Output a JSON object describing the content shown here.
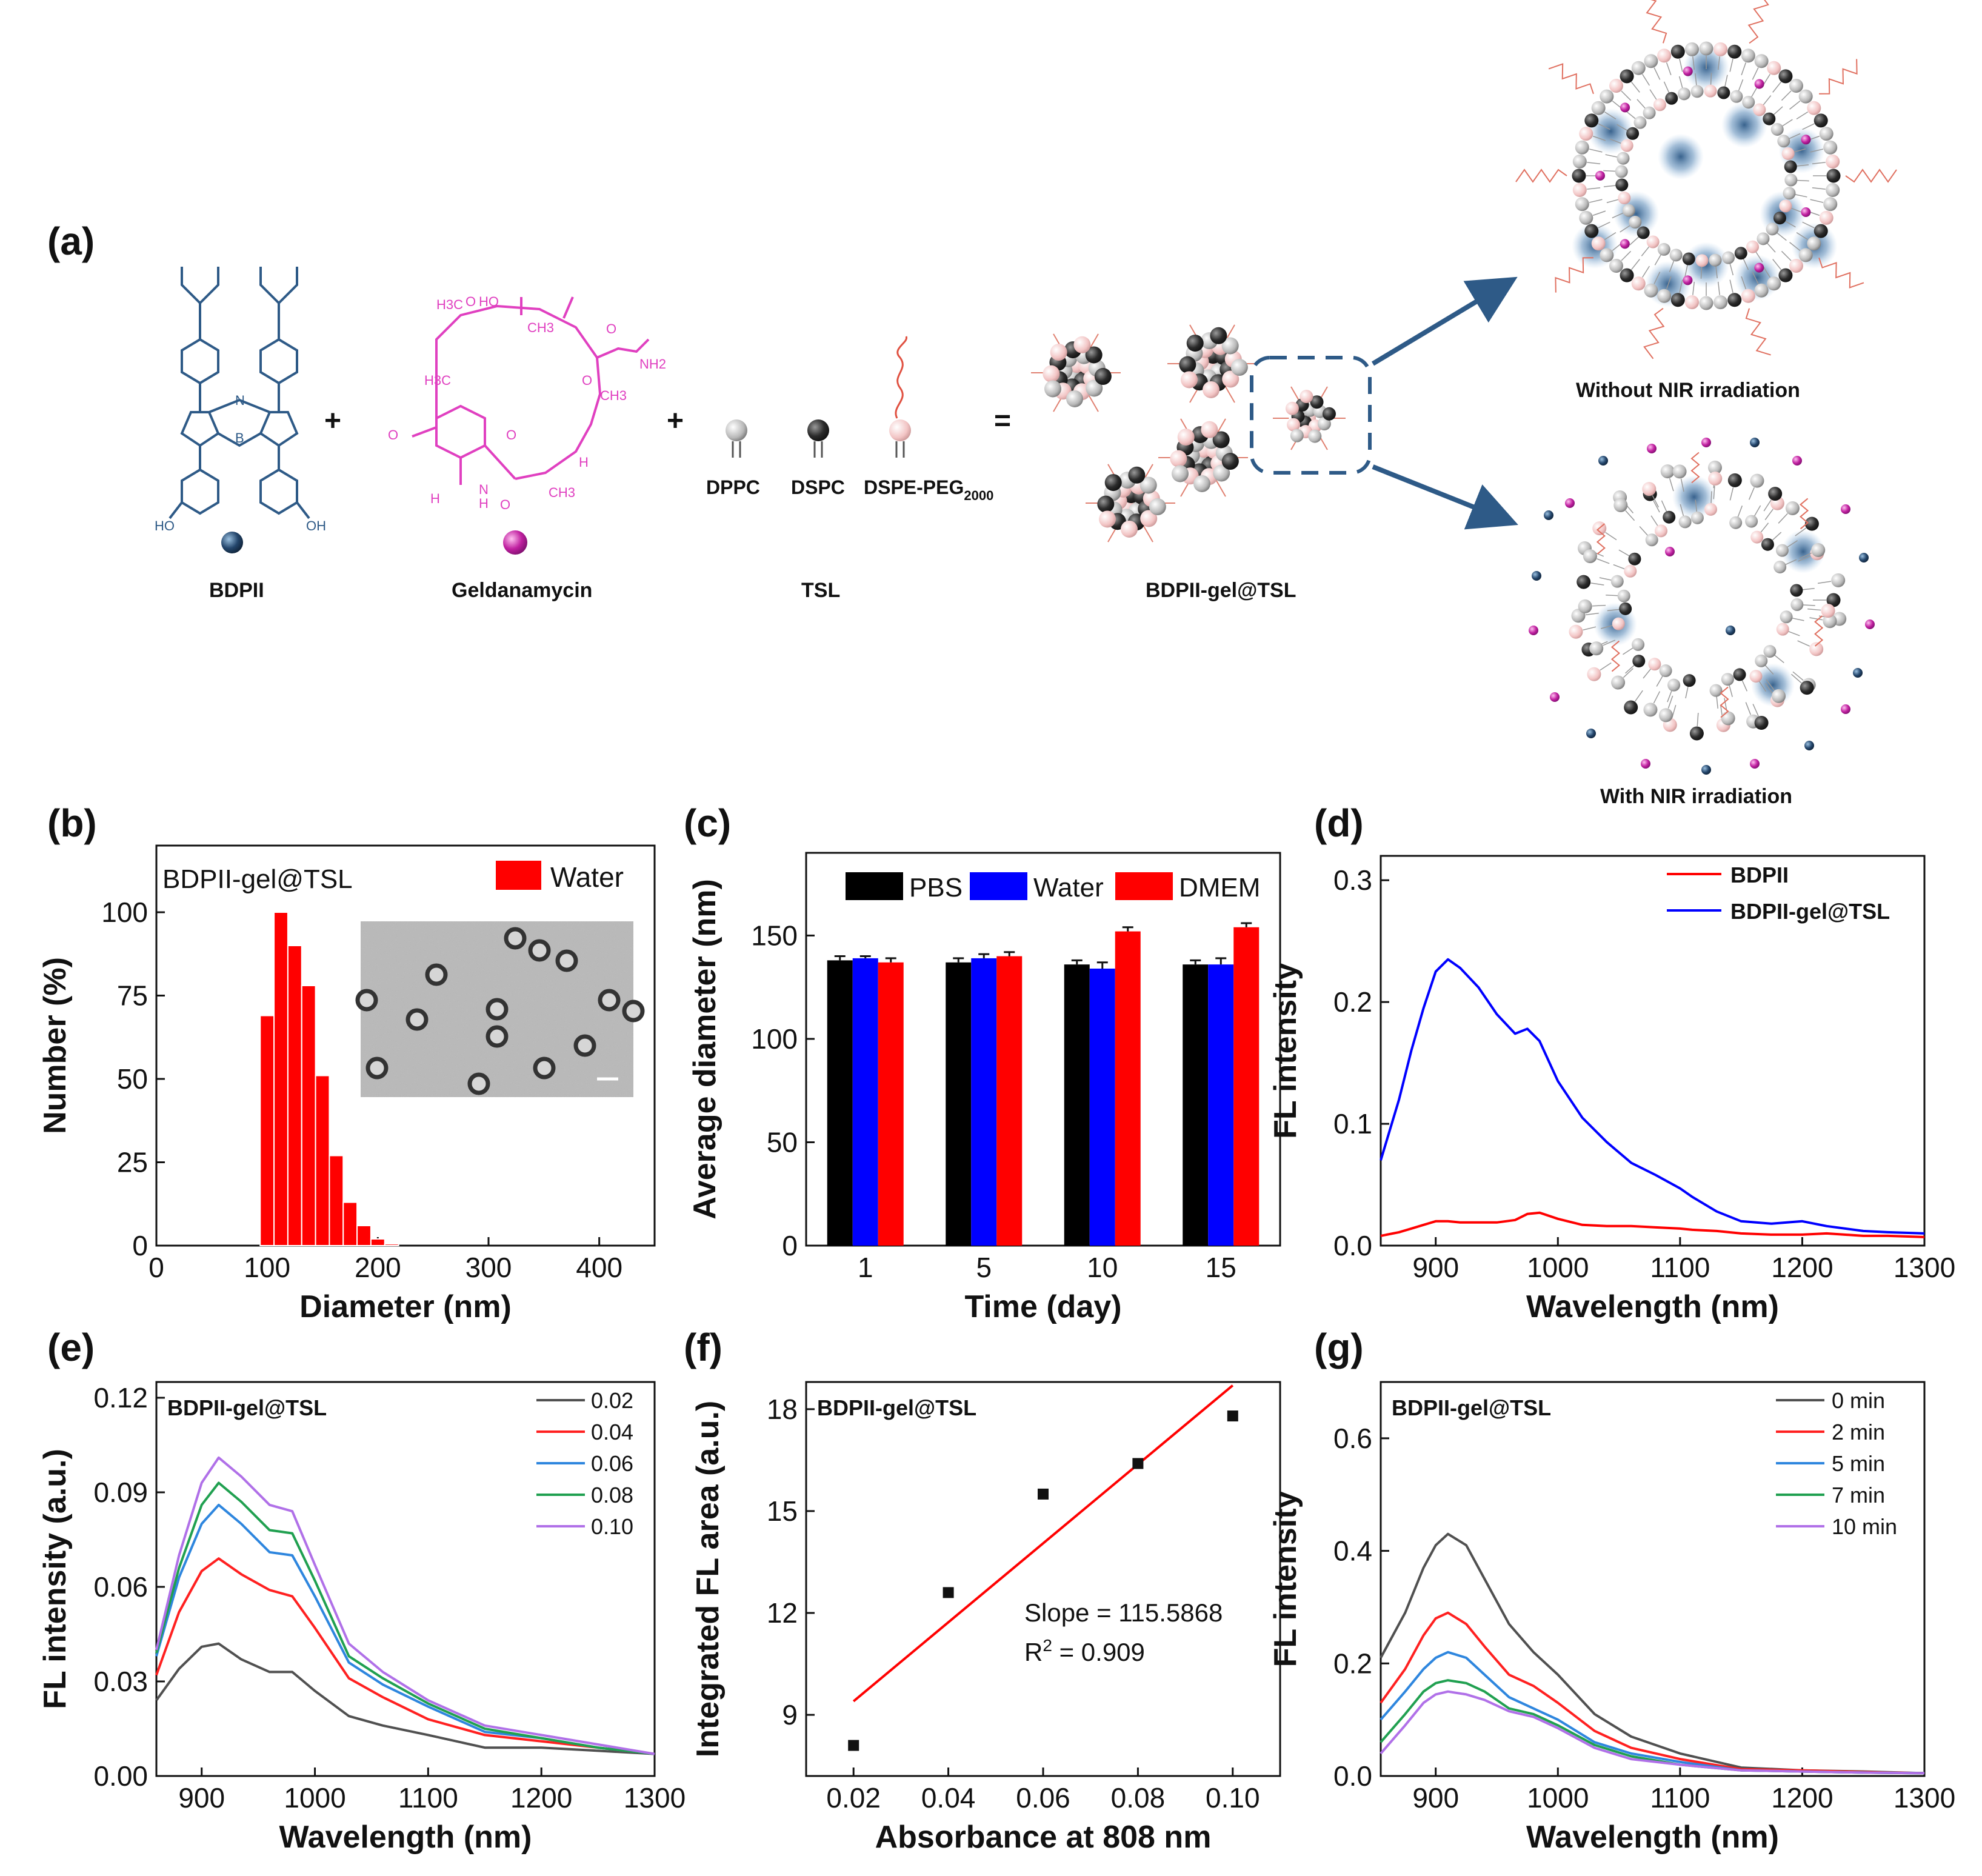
{
  "panel_labels": [
    "(a)",
    "(b)",
    "(c)",
    "(d)",
    "(e)",
    "(f)",
    "(g)"
  ],
  "schematic": {
    "components": [
      {
        "name": "BDPII"
      },
      {
        "name": "Geldanamycin"
      },
      {
        "name": "TSL",
        "lipids": [
          "DPPC",
          "DSPC"
        ],
        "peg_base": "DSPE-PEG",
        "peg_sub": "2000"
      },
      {
        "name": "BDPII-gel@TSL"
      }
    ],
    "operators": [
      "+",
      "+",
      "="
    ],
    "outcomes": [
      "Without NIR irradiation",
      "With NIR irradiation"
    ],
    "chem_labels": [
      "H3C",
      "O",
      "HO",
      "CH3",
      "O",
      "NH2",
      "H3C",
      "O",
      "CH3",
      "O",
      "O",
      "N",
      "H",
      "O",
      "CH3",
      "H",
      "H",
      "HO",
      "OH",
      "N",
      "B"
    ],
    "colors": {
      "bdpii": "#2e5a87",
      "gel": "#e040c0",
      "dark_sphere": "#2b2b2b",
      "light_sphere": "#c8c8c8",
      "pink_sphere": "#f0c0c0",
      "arrow": "#2e5a87"
    }
  },
  "chart_data": [
    {
      "id": "b",
      "type": "bar",
      "title": "BDPII-gel@TSL",
      "xlabel": "Diameter (nm)",
      "ylabel": "Number (%)",
      "xlim": [
        0,
        450
      ],
      "ylim": [
        0,
        120
      ],
      "xticks": [
        0,
        100,
        200,
        300,
        400
      ],
      "yticks": [
        0,
        25,
        50,
        75,
        100
      ],
      "legend": [
        "Water"
      ],
      "color": "#ff0000",
      "bin_width": 12.5,
      "bin_centers": [
        100,
        112.5,
        125,
        137.5,
        150,
        162.5,
        175,
        187.5,
        200,
        212.5
      ],
      "values": [
        69,
        100,
        90,
        78,
        51,
        27,
        13,
        6,
        2,
        0.5
      ],
      "inset": "TEM image"
    },
    {
      "id": "c",
      "type": "bar",
      "xlabel": "Time (day)",
      "ylabel": "Average diameter (nm)",
      "ylim": [
        0,
        190
      ],
      "yticks": [
        0,
        50,
        100,
        150
      ],
      "categories": [
        "1",
        "5",
        "10",
        "15"
      ],
      "series": [
        {
          "name": "PBS",
          "color": "#000000",
          "values": [
            138,
            137,
            136,
            136
          ],
          "errors": [
            2,
            2,
            2,
            2
          ]
        },
        {
          "name": "Water",
          "color": "#0000ff",
          "values": [
            139,
            139,
            134,
            136
          ],
          "errors": [
            1,
            2,
            3,
            3
          ]
        },
        {
          "name": "DMEM",
          "color": "#ff0000",
          "values": [
            137,
            140,
            152,
            154
          ],
          "errors": [
            2,
            2,
            2,
            2
          ]
        }
      ]
    },
    {
      "id": "d",
      "type": "line",
      "xlabel": "Wavelength (nm)",
      "ylabel": "FL intensity",
      "xlim": [
        855,
        1300
      ],
      "ylim": [
        0,
        0.32
      ],
      "xticks": [
        900,
        1000,
        1100,
        1200,
        1300
      ],
      "yticks": [
        0.0,
        0.1,
        0.2,
        0.3
      ],
      "ytick_labels": [
        "0.0",
        "0.1",
        "0.2",
        "0.3"
      ],
      "x": [
        855,
        870,
        880,
        890,
        900,
        910,
        920,
        935,
        950,
        965,
        975,
        985,
        1000,
        1020,
        1040,
        1060,
        1080,
        1100,
        1110,
        1130,
        1150,
        1175,
        1200,
        1220,
        1250,
        1270,
        1300
      ],
      "series": [
        {
          "name": "BDPII",
          "color": "#ff0000",
          "values": [
            0.008,
            0.011,
            0.014,
            0.017,
            0.02,
            0.02,
            0.019,
            0.019,
            0.019,
            0.021,
            0.026,
            0.027,
            0.022,
            0.017,
            0.016,
            0.016,
            0.015,
            0.014,
            0.013,
            0.012,
            0.01,
            0.009,
            0.009,
            0.01,
            0.008,
            0.008,
            0.007
          ]
        },
        {
          "name": "BDPII-gel@TSL",
          "color": "#0000ff",
          "values": [
            0.07,
            0.12,
            0.16,
            0.195,
            0.225,
            0.235,
            0.228,
            0.212,
            0.19,
            0.174,
            0.178,
            0.168,
            0.135,
            0.105,
            0.085,
            0.068,
            0.058,
            0.047,
            0.04,
            0.028,
            0.02,
            0.018,
            0.02,
            0.016,
            0.012,
            0.011,
            0.01
          ]
        }
      ]
    },
    {
      "id": "e",
      "type": "line",
      "title": "BDPII-gel@TSL",
      "xlabel": "Wavelength (nm)",
      "ylabel": "FL intensity (a.u.)",
      "xlim": [
        860,
        1300
      ],
      "ylim": [
        0,
        0.125
      ],
      "xticks": [
        900,
        1000,
        1100,
        1200,
        1300
      ],
      "yticks": [
        0.0,
        0.03,
        0.06,
        0.09,
        0.12
      ],
      "ytick_labels": [
        "0.00",
        "0.03",
        "0.06",
        "0.09",
        "0.12"
      ],
      "x": [
        860,
        880,
        900,
        915,
        935,
        960,
        980,
        1000,
        1030,
        1060,
        1100,
        1150,
        1200,
        1250,
        1300
      ],
      "series": [
        {
          "name": "0.02",
          "color": "#505050",
          "values": [
            0.024,
            0.034,
            0.041,
            0.042,
            0.037,
            0.033,
            0.033,
            0.027,
            0.019,
            0.016,
            0.013,
            0.009,
            0.009,
            0.008,
            0.007
          ]
        },
        {
          "name": "0.04",
          "color": "#ff2020",
          "values": [
            0.032,
            0.052,
            0.065,
            0.069,
            0.064,
            0.059,
            0.057,
            0.047,
            0.031,
            0.025,
            0.018,
            0.013,
            0.011,
            0.009,
            0.007
          ]
        },
        {
          "name": "0.06",
          "color": "#2e86de",
          "values": [
            0.038,
            0.063,
            0.08,
            0.086,
            0.08,
            0.071,
            0.07,
            0.057,
            0.036,
            0.029,
            0.022,
            0.014,
            0.012,
            0.009,
            0.007
          ]
        },
        {
          "name": "0.08",
          "color": "#20a050",
          "values": [
            0.039,
            0.066,
            0.086,
            0.093,
            0.087,
            0.078,
            0.077,
            0.062,
            0.038,
            0.031,
            0.023,
            0.015,
            0.012,
            0.009,
            0.007
          ]
        },
        {
          "name": "0.10",
          "color": "#b070e8",
          "values": [
            0.04,
            0.07,
            0.093,
            0.101,
            0.095,
            0.086,
            0.084,
            0.067,
            0.042,
            0.033,
            0.024,
            0.016,
            0.013,
            0.01,
            0.007
          ]
        }
      ]
    },
    {
      "id": "f",
      "type": "scatter",
      "title": "BDPII-gel@TSL",
      "xlabel": "Absorbance at 808 nm",
      "ylabel": "Integrated FL area (a.u.)",
      "xlim": [
        0.01,
        0.11
      ],
      "ylim": [
        7.2,
        18.8
      ],
      "xticks": [
        0.02,
        0.04,
        0.06,
        0.08,
        0.1
      ],
      "xtick_labels": [
        "0.02",
        "0.04",
        "0.06",
        "0.08",
        "0.10"
      ],
      "yticks": [
        9,
        12,
        15,
        18
      ],
      "points": [
        {
          "x": 0.02,
          "y": 8.1
        },
        {
          "x": 0.04,
          "y": 12.6
        },
        {
          "x": 0.06,
          "y": 15.5
        },
        {
          "x": 0.08,
          "y": 16.4
        },
        {
          "x": 0.1,
          "y": 17.8
        }
      ],
      "fit": {
        "x0": 0.02,
        "y0": 9.4,
        "x1": 0.1,
        "y1": 18.7,
        "color": "#ff0000"
      },
      "annotation": {
        "slope_label": "Slope = 115.5868",
        "r2_base": "R",
        "r2_sup": "2",
        "r2_rest": " = 0.909"
      }
    },
    {
      "id": "g",
      "type": "line",
      "title": "BDPII-gel@TSL",
      "xlabel": "Wavelength (nm)",
      "ylabel": "FL intensity",
      "xlim": [
        855,
        1300
      ],
      "ylim": [
        0,
        0.7
      ],
      "xticks": [
        900,
        1000,
        1100,
        1200,
        1300
      ],
      "yticks": [
        0.0,
        0.2,
        0.4,
        0.6
      ],
      "ytick_labels": [
        "0.0",
        "0.2",
        "0.4",
        "0.6"
      ],
      "x": [
        855,
        875,
        890,
        900,
        910,
        925,
        940,
        960,
        980,
        1000,
        1030,
        1060,
        1100,
        1150,
        1200,
        1250,
        1300
      ],
      "series": [
        {
          "name": "0 min",
          "color": "#505050",
          "values": [
            0.21,
            0.29,
            0.37,
            0.41,
            0.43,
            0.41,
            0.35,
            0.27,
            0.22,
            0.18,
            0.11,
            0.07,
            0.04,
            0.015,
            0.01,
            0.008,
            0.005
          ]
        },
        {
          "name": "2 min",
          "color": "#ff2020",
          "values": [
            0.13,
            0.19,
            0.25,
            0.28,
            0.29,
            0.27,
            0.23,
            0.18,
            0.16,
            0.13,
            0.08,
            0.05,
            0.03,
            0.012,
            0.01,
            0.007,
            0.005
          ]
        },
        {
          "name": "5 min",
          "color": "#2e86de",
          "values": [
            0.1,
            0.15,
            0.19,
            0.21,
            0.22,
            0.21,
            0.18,
            0.14,
            0.12,
            0.1,
            0.06,
            0.04,
            0.025,
            0.01,
            0.008,
            0.006,
            0.005
          ]
        },
        {
          "name": "7 min",
          "color": "#20a050",
          "values": [
            0.06,
            0.11,
            0.15,
            0.165,
            0.17,
            0.165,
            0.15,
            0.12,
            0.11,
            0.09,
            0.055,
            0.035,
            0.02,
            0.01,
            0.008,
            0.006,
            0.005
          ]
        },
        {
          "name": "10 min",
          "color": "#b070e8",
          "values": [
            0.04,
            0.09,
            0.13,
            0.145,
            0.15,
            0.145,
            0.135,
            0.115,
            0.105,
            0.085,
            0.05,
            0.03,
            0.02,
            0.01,
            0.008,
            0.006,
            0.005
          ]
        }
      ]
    }
  ]
}
